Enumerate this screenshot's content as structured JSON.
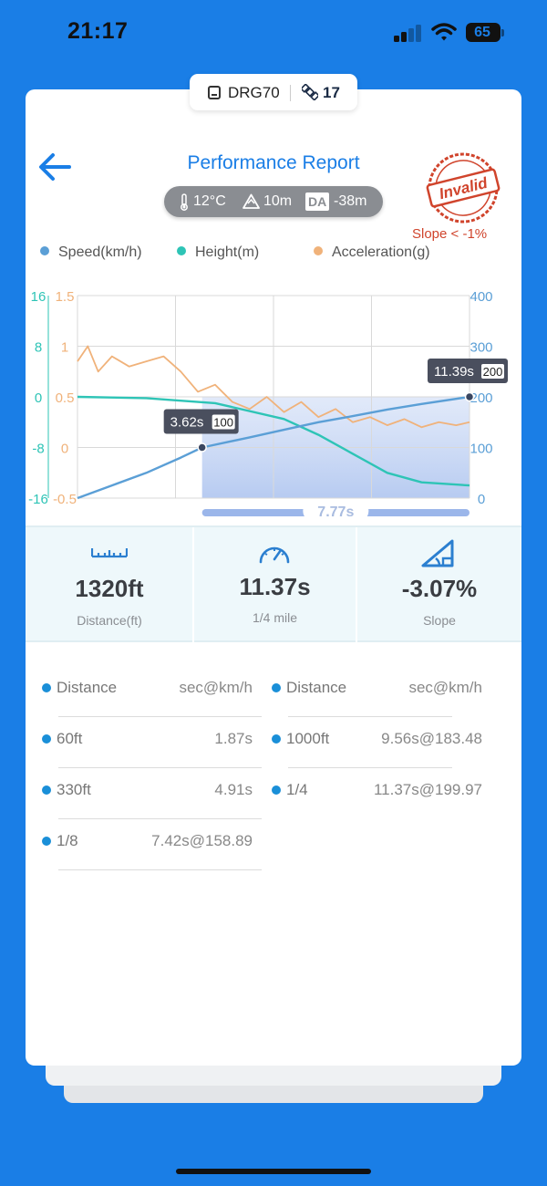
{
  "status_bar": {
    "time": "21:17",
    "battery": "65"
  },
  "device": {
    "name": "DRG70",
    "satellites": "17"
  },
  "header": {
    "title": "Performance Report"
  },
  "conditions": {
    "temperature": "12°C",
    "altitude": "10m",
    "da_badge": "DA",
    "density_altitude": "-38m"
  },
  "validity": {
    "stamp_text": "Invalid",
    "warning": "Slope < -1%",
    "stamp_color": "#d0442c"
  },
  "legend": [
    {
      "label": "Speed(km/h)",
      "color": "#5b9fd6"
    },
    {
      "label": "Height(m)",
      "color": "#2ec4b6"
    },
    {
      "label": "Acceleration(g)",
      "color": "#f0b27a"
    }
  ],
  "chart_data": {
    "type": "line",
    "x_range": [
      0,
      11.39
    ],
    "speed_axis": {
      "ticks": [
        "400",
        "300",
        "200",
        "100",
        "0"
      ],
      "range": [
        0,
        400
      ],
      "color": "#5b9fd6"
    },
    "height_axis": {
      "ticks": [
        "16",
        "8",
        "0",
        "-8",
        "-16"
      ],
      "range": [
        -16,
        16
      ],
      "color": "#2ec4b6"
    },
    "accel_axis": {
      "ticks": [
        "1.5",
        "1",
        "0.5",
        "0",
        "-0.5"
      ],
      "range": [
        -0.5,
        1.5
      ],
      "color": "#f0b27a"
    },
    "grid": true,
    "series": [
      {
        "name": "Speed(km/h)",
        "x": [
          0,
          1,
          2,
          3,
          3.62,
          5,
          6,
          7,
          8,
          9,
          10,
          11.39
        ],
        "y": [
          0,
          25,
          50,
          80,
          100,
          120,
          135,
          150,
          162,
          175,
          186,
          200
        ]
      },
      {
        "name": "Height(m)",
        "x": [
          0,
          2,
          4,
          6,
          7,
          8,
          9,
          10,
          11.39
        ],
        "y": [
          0,
          -0.2,
          -1,
          -3.5,
          -6,
          -9,
          -12,
          -13.5,
          -14
        ]
      },
      {
        "name": "Acceleration(g)",
        "x": [
          0,
          0.3,
          0.6,
          1,
          1.5,
          2,
          2.5,
          3,
          3.5,
          4,
          4.5,
          5,
          5.5,
          6,
          6.5,
          7,
          7.5,
          8,
          8.5,
          9,
          9.5,
          10,
          10.5,
          11,
          11.39
        ],
        "y": [
          0.85,
          1.0,
          0.75,
          0.9,
          0.8,
          0.85,
          0.9,
          0.75,
          0.55,
          0.62,
          0.45,
          0.38,
          0.5,
          0.35,
          0.45,
          0.3,
          0.38,
          0.25,
          0.3,
          0.22,
          0.28,
          0.2,
          0.25,
          0.22,
          0.25
        ]
      }
    ],
    "markers": [
      {
        "time": "3.62s",
        "speed": "100",
        "x": 3.62,
        "y": 100
      },
      {
        "time": "11.39s",
        "speed": "200",
        "x": 11.39,
        "y": 200
      }
    ],
    "highlight": {
      "from": 3.62,
      "to": 11.39,
      "label": "7.77s"
    }
  },
  "stats": [
    {
      "value": "1320ft",
      "label": "Distance(ft)",
      "icon": "ruler-icon"
    },
    {
      "value": "11.37s",
      "label": "1/4 mile",
      "icon": "speedometer-icon"
    },
    {
      "value": "-3.07%",
      "label": "Slope",
      "icon": "slope-icon"
    }
  ],
  "splits": {
    "headers": [
      {
        "name": "Distance",
        "value": "sec@km/h"
      },
      {
        "name": "Distance",
        "value": "sec@km/h"
      }
    ],
    "left": [
      {
        "name": "60ft",
        "value": "1.87s"
      },
      {
        "name": "330ft",
        "value": "4.91s"
      },
      {
        "name": "1/8",
        "value": "7.42s@158.89"
      }
    ],
    "right": [
      {
        "name": "1000ft",
        "value": "9.56s@183.48"
      },
      {
        "name": "1/4",
        "value": "11.37s@199.97"
      }
    ]
  }
}
